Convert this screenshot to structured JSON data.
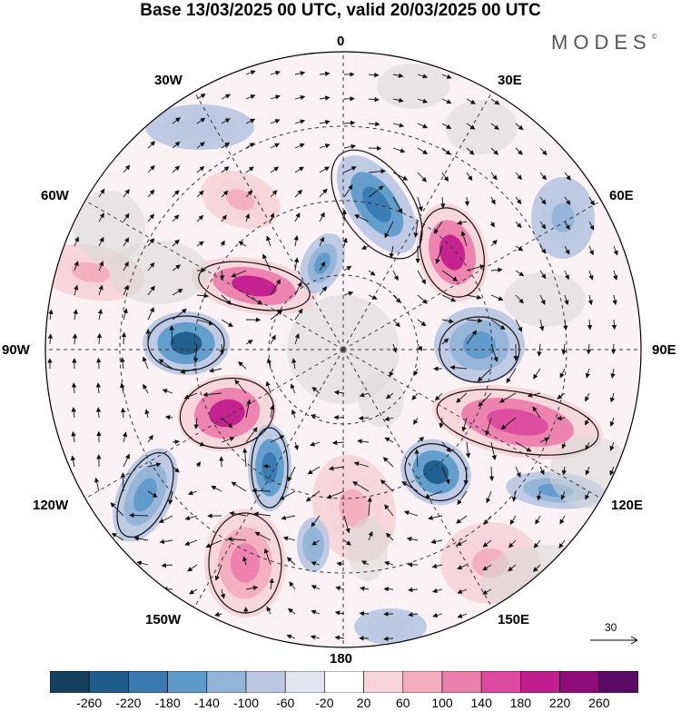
{
  "title": "Base 13/03/2025 00 UTC, valid 20/03/2025 00 UTC",
  "brand": "MODES",
  "brand_mark": "©",
  "longitude_labels": {
    "top": "0",
    "bottom": "180",
    "left": "90W",
    "right": "90E",
    "w30": "30W",
    "e30": "30E",
    "w60": "60W",
    "e60": "60E",
    "w120": "120W",
    "e120": "120E",
    "w150": "150W",
    "e150": "150E"
  },
  "reference_vector": {
    "value": "30"
  },
  "colorbar": {
    "ticks": [
      "-260",
      "-220",
      "-180",
      "-140",
      "-100",
      "-60",
      "-20",
      "20",
      "60",
      "100",
      "140",
      "180",
      "220",
      "260"
    ],
    "colors": [
      "#15405e",
      "#1f5d8c",
      "#3a7ab3",
      "#5e9bcb",
      "#93b3d8",
      "#bcc8e3",
      "#e3e3f1",
      "#ffffff",
      "#f7d4da",
      "#f3adbf",
      "#eb7fac",
      "#dc4ba0",
      "#c21d8d",
      "#8e0d7a",
      "#5b0a66"
    ]
  },
  "map_colors": {
    "land": "#d9d9d9",
    "coast": "#555555",
    "grid": "#333333",
    "arrow": "#111111"
  }
}
